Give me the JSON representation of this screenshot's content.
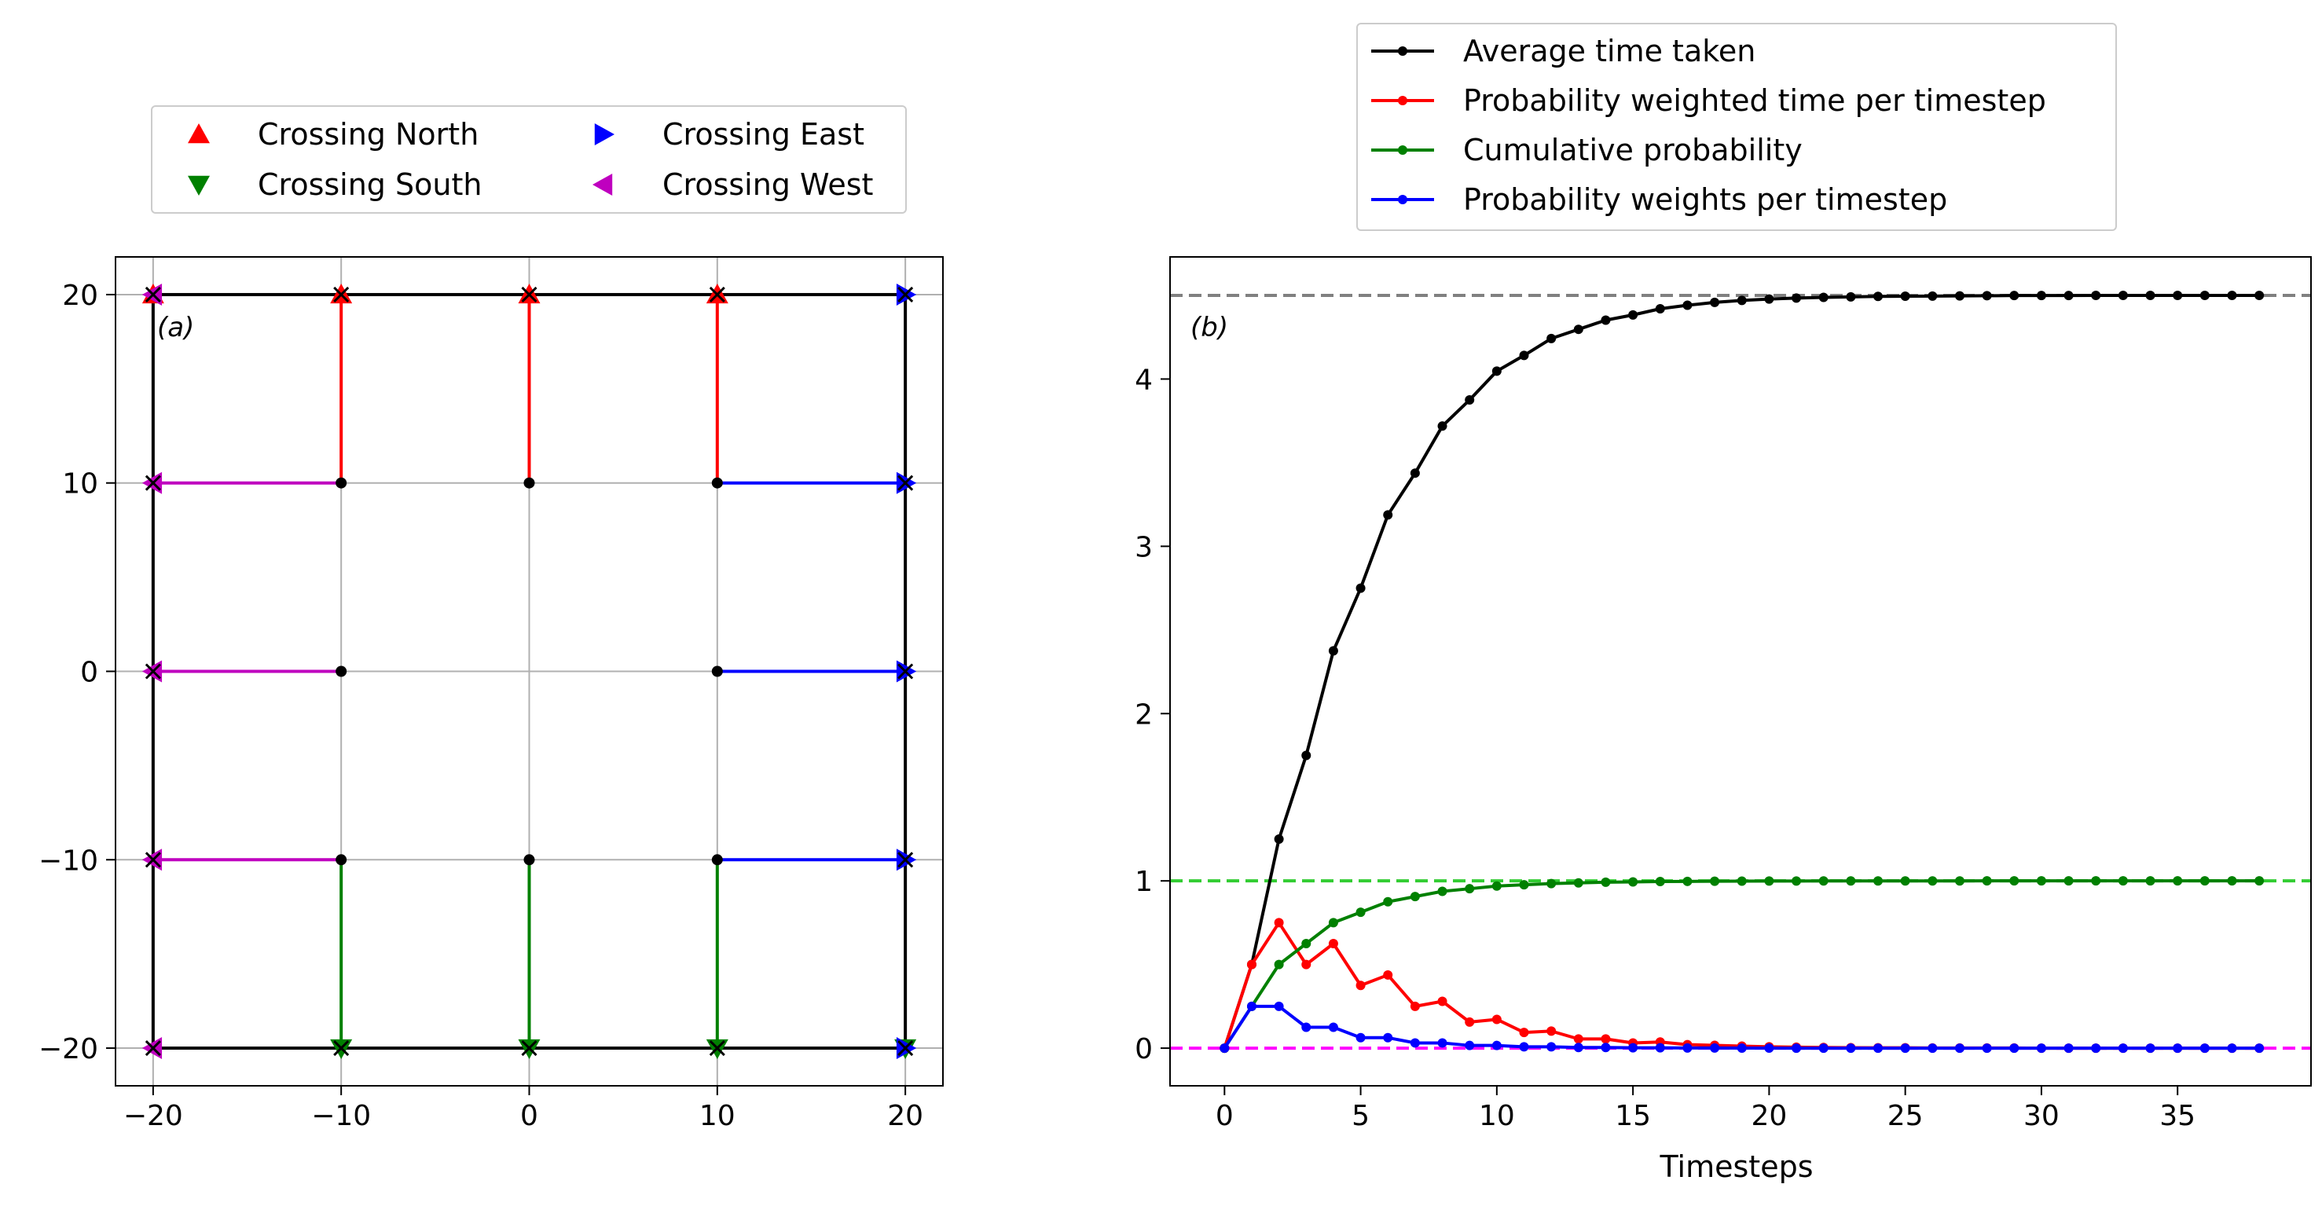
{
  "chart_data": [
    {
      "type": "scatter",
      "panel_label": "(a)",
      "xlim": [
        -22,
        22
      ],
      "ylim": [
        -22,
        22
      ],
      "xticks": [
        -20,
        -10,
        0,
        10,
        20
      ],
      "yticks": [
        -20,
        -10,
        0,
        10,
        20
      ],
      "xtick_labels": [
        "−20",
        "−10",
        "0",
        "10",
        "20"
      ],
      "ytick_labels": [
        "−20",
        "−10",
        "0",
        "10",
        "20"
      ],
      "grid": true,
      "legend_position": "above",
      "boundary_square": {
        "x": [
          -20,
          20
        ],
        "y": [
          -20,
          20
        ],
        "color": "#000000"
      },
      "start_points": [
        [
          -10,
          10
        ],
        [
          0,
          10
        ],
        [
          10,
          10
        ],
        [
          -10,
          0
        ],
        [
          10,
          0
        ],
        [
          -10,
          -10
        ],
        [
          0,
          -10
        ],
        [
          10,
          -10
        ]
      ],
      "end_points": [
        [
          -20,
          20
        ],
        [
          -10,
          20
        ],
        [
          0,
          20
        ],
        [
          10,
          20
        ],
        [
          20,
          20
        ],
        [
          -20,
          10
        ],
        [
          20,
          10
        ],
        [
          -20,
          0
        ],
        [
          20,
          0
        ],
        [
          -20,
          -10
        ],
        [
          20,
          -10
        ],
        [
          -20,
          -20
        ],
        [
          -10,
          -20
        ],
        [
          0,
          -20
        ],
        [
          10,
          -20
        ],
        [
          20,
          -20
        ]
      ],
      "series": [
        {
          "name": "Crossing North",
          "color": "#ff0000",
          "marker": "triangle-up",
          "paths": [
            [
              [
                -10,
                10
              ],
              [
                -10,
                20
              ]
            ],
            [
              [
                0,
                10
              ],
              [
                0,
                20
              ]
            ],
            [
              [
                10,
                10
              ],
              [
                10,
                20
              ]
            ]
          ],
          "extra_markers": [
            [
              -20,
              20
            ]
          ]
        },
        {
          "name": "Crossing South",
          "color": "#008000",
          "marker": "triangle-down",
          "paths": [
            [
              [
                -10,
                -10
              ],
              [
                -10,
                -20
              ]
            ],
            [
              [
                0,
                -10
              ],
              [
                0,
                -20
              ]
            ],
            [
              [
                10,
                -10
              ],
              [
                10,
                -20
              ]
            ]
          ],
          "extra_markers": [
            [
              20,
              -20
            ]
          ]
        },
        {
          "name": "Crossing East",
          "color": "#0000ff",
          "marker": "triangle-right",
          "paths": [
            [
              [
                10,
                10
              ],
              [
                20,
                10
              ]
            ],
            [
              [
                10,
                0
              ],
              [
                20,
                0
              ]
            ],
            [
              [
                10,
                -10
              ],
              [
                20,
                -10
              ]
            ]
          ],
          "extra_markers": [
            [
              20,
              20
            ],
            [
              20,
              -20
            ]
          ]
        },
        {
          "name": "Crossing West",
          "color": "#bf00bf",
          "marker": "triangle-left",
          "paths": [
            [
              [
                -10,
                10
              ],
              [
                -20,
                10
              ]
            ],
            [
              [
                -10,
                0
              ],
              [
                -20,
                0
              ]
            ],
            [
              [
                -10,
                -10
              ],
              [
                -20,
                -10
              ]
            ]
          ],
          "extra_markers": [
            [
              -20,
              20
            ],
            [
              -20,
              -20
            ]
          ]
        }
      ]
    },
    {
      "type": "line",
      "panel_label": "(b)",
      "xlabel": "Timesteps",
      "xlim": [
        -2,
        39.9
      ],
      "ylim": [
        -0.225,
        4.73
      ],
      "xticks": [
        0,
        5,
        10,
        15,
        20,
        25,
        30,
        35
      ],
      "yticks": [
        0,
        1,
        2,
        3,
        4
      ],
      "grid": false,
      "legend_position": "above",
      "x": [
        0,
        1,
        2,
        3,
        4,
        5,
        6,
        7,
        8,
        9,
        10,
        11,
        12,
        13,
        14,
        15,
        16,
        17,
        18,
        19,
        20,
        21,
        22,
        23,
        24,
        25,
        26,
        27,
        28,
        29,
        30,
        31,
        32,
        33,
        34,
        35,
        36,
        37,
        38
      ],
      "hlines": [
        {
          "y": 4.5,
          "color": "#808080"
        },
        {
          "y": 1.0,
          "color": "#32cd32"
        },
        {
          "y": 0.0,
          "color": "#ff00ff"
        }
      ],
      "series": [
        {
          "name": "Average time taken",
          "color": "#000000",
          "values": [
            0,
            0.5,
            1.25,
            1.75,
            2.375,
            2.75,
            3.1875,
            3.4375,
            3.71875,
            3.875,
            4.047,
            4.141,
            4.242,
            4.297,
            4.352,
            4.383,
            4.42,
            4.441,
            4.458,
            4.47,
            4.478,
            4.484,
            4.488,
            4.491,
            4.494,
            4.495,
            4.496,
            4.497,
            4.498,
            4.499,
            4.499,
            4.499,
            4.5,
            4.5,
            4.5,
            4.5,
            4.5,
            4.5,
            4.5
          ]
        },
        {
          "name": "Probability weighted time per timestep",
          "color": "#ff0000",
          "values": [
            0,
            0.5,
            0.75,
            0.5,
            0.625,
            0.375,
            0.4375,
            0.25,
            0.28,
            0.156,
            0.172,
            0.094,
            0.102,
            0.055,
            0.055,
            0.031,
            0.037,
            0.021,
            0.017,
            0.012,
            0.008,
            0.006,
            0.004,
            0.003,
            0.002,
            0.002,
            0.001,
            0.001,
            0.001,
            0.001,
            0,
            0,
            0,
            0,
            0,
            0,
            0,
            0,
            0
          ]
        },
        {
          "name": "Cumulative probability",
          "color": "#008000",
          "values": [
            0,
            0.25,
            0.5,
            0.625,
            0.75,
            0.8125,
            0.875,
            0.90625,
            0.9375,
            0.953,
            0.969,
            0.977,
            0.984,
            0.988,
            0.992,
            0.994,
            0.996,
            0.997,
            0.998,
            0.9985,
            0.999,
            0.9993,
            0.9995,
            0.9996,
            0.9997,
            0.9998,
            0.9999,
            0.9999,
            1,
            1,
            1,
            1,
            1,
            1,
            1,
            1,
            1,
            1,
            1
          ]
        },
        {
          "name": "Probability weights per timestep",
          "color": "#0000ff",
          "values": [
            0,
            0.25,
            0.25,
            0.125,
            0.125,
            0.0625,
            0.0625,
            0.03125,
            0.03125,
            0.016,
            0.016,
            0.008,
            0.008,
            0.004,
            0.004,
            0.002,
            0.002,
            0.001,
            0.001,
            0.0005,
            0.0005,
            0,
            0,
            0,
            0,
            0,
            0,
            0,
            0,
            0,
            0,
            0,
            0,
            0,
            0,
            0,
            0,
            0,
            0
          ]
        }
      ]
    }
  ]
}
